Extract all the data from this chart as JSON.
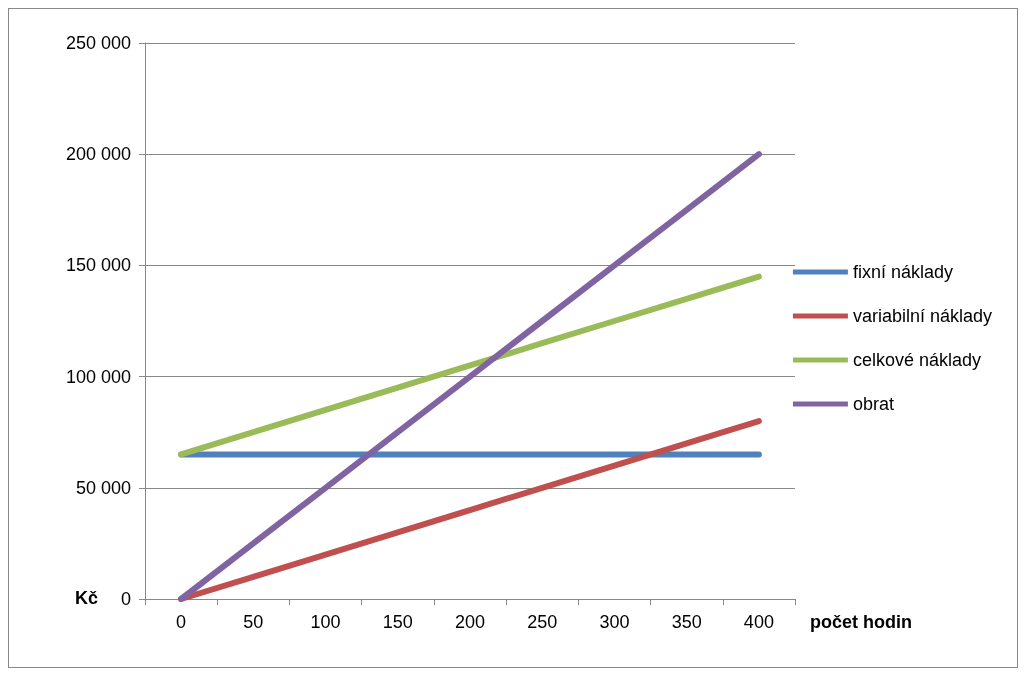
{
  "chart_data": {
    "type": "line",
    "xlabel": "počet hodin",
    "ylabel": "Kč",
    "categories": [
      "0",
      "50",
      "100",
      "150",
      "200",
      "250",
      "300",
      "350",
      "400"
    ],
    "series": [
      {
        "name": "fixní náklady",
        "color": "#4f81bd",
        "values": [
          65000,
          65000,
          65000,
          65000,
          65000,
          65000,
          65000,
          65000,
          65000
        ]
      },
      {
        "name": "variabilní náklady",
        "color": "#c0504d",
        "values": [
          0,
          10000,
          20000,
          30000,
          40000,
          50000,
          60000,
          70000,
          80000
        ]
      },
      {
        "name": "celkové náklady",
        "color": "#9bbb59",
        "values": [
          65000,
          75000,
          85000,
          95000,
          105000,
          115000,
          125000,
          135000,
          145000
        ]
      },
      {
        "name": "obrat",
        "color": "#8064a2",
        "values": [
          0,
          25000,
          50000,
          75000,
          100000,
          125000,
          150000,
          175000,
          200000
        ]
      }
    ],
    "ylim": [
      0,
      250000
    ],
    "yticks": [
      {
        "value": 0,
        "label": "0"
      },
      {
        "value": 50000,
        "label": "50 000"
      },
      {
        "value": 100000,
        "label": "100 000"
      },
      {
        "value": 150000,
        "label": "150 000"
      },
      {
        "value": 200000,
        "label": "200 000"
      },
      {
        "value": 250000,
        "label": "250 000"
      }
    ],
    "grid": "y",
    "legend": "right",
    "marker": "none",
    "line_style": "solid"
  }
}
